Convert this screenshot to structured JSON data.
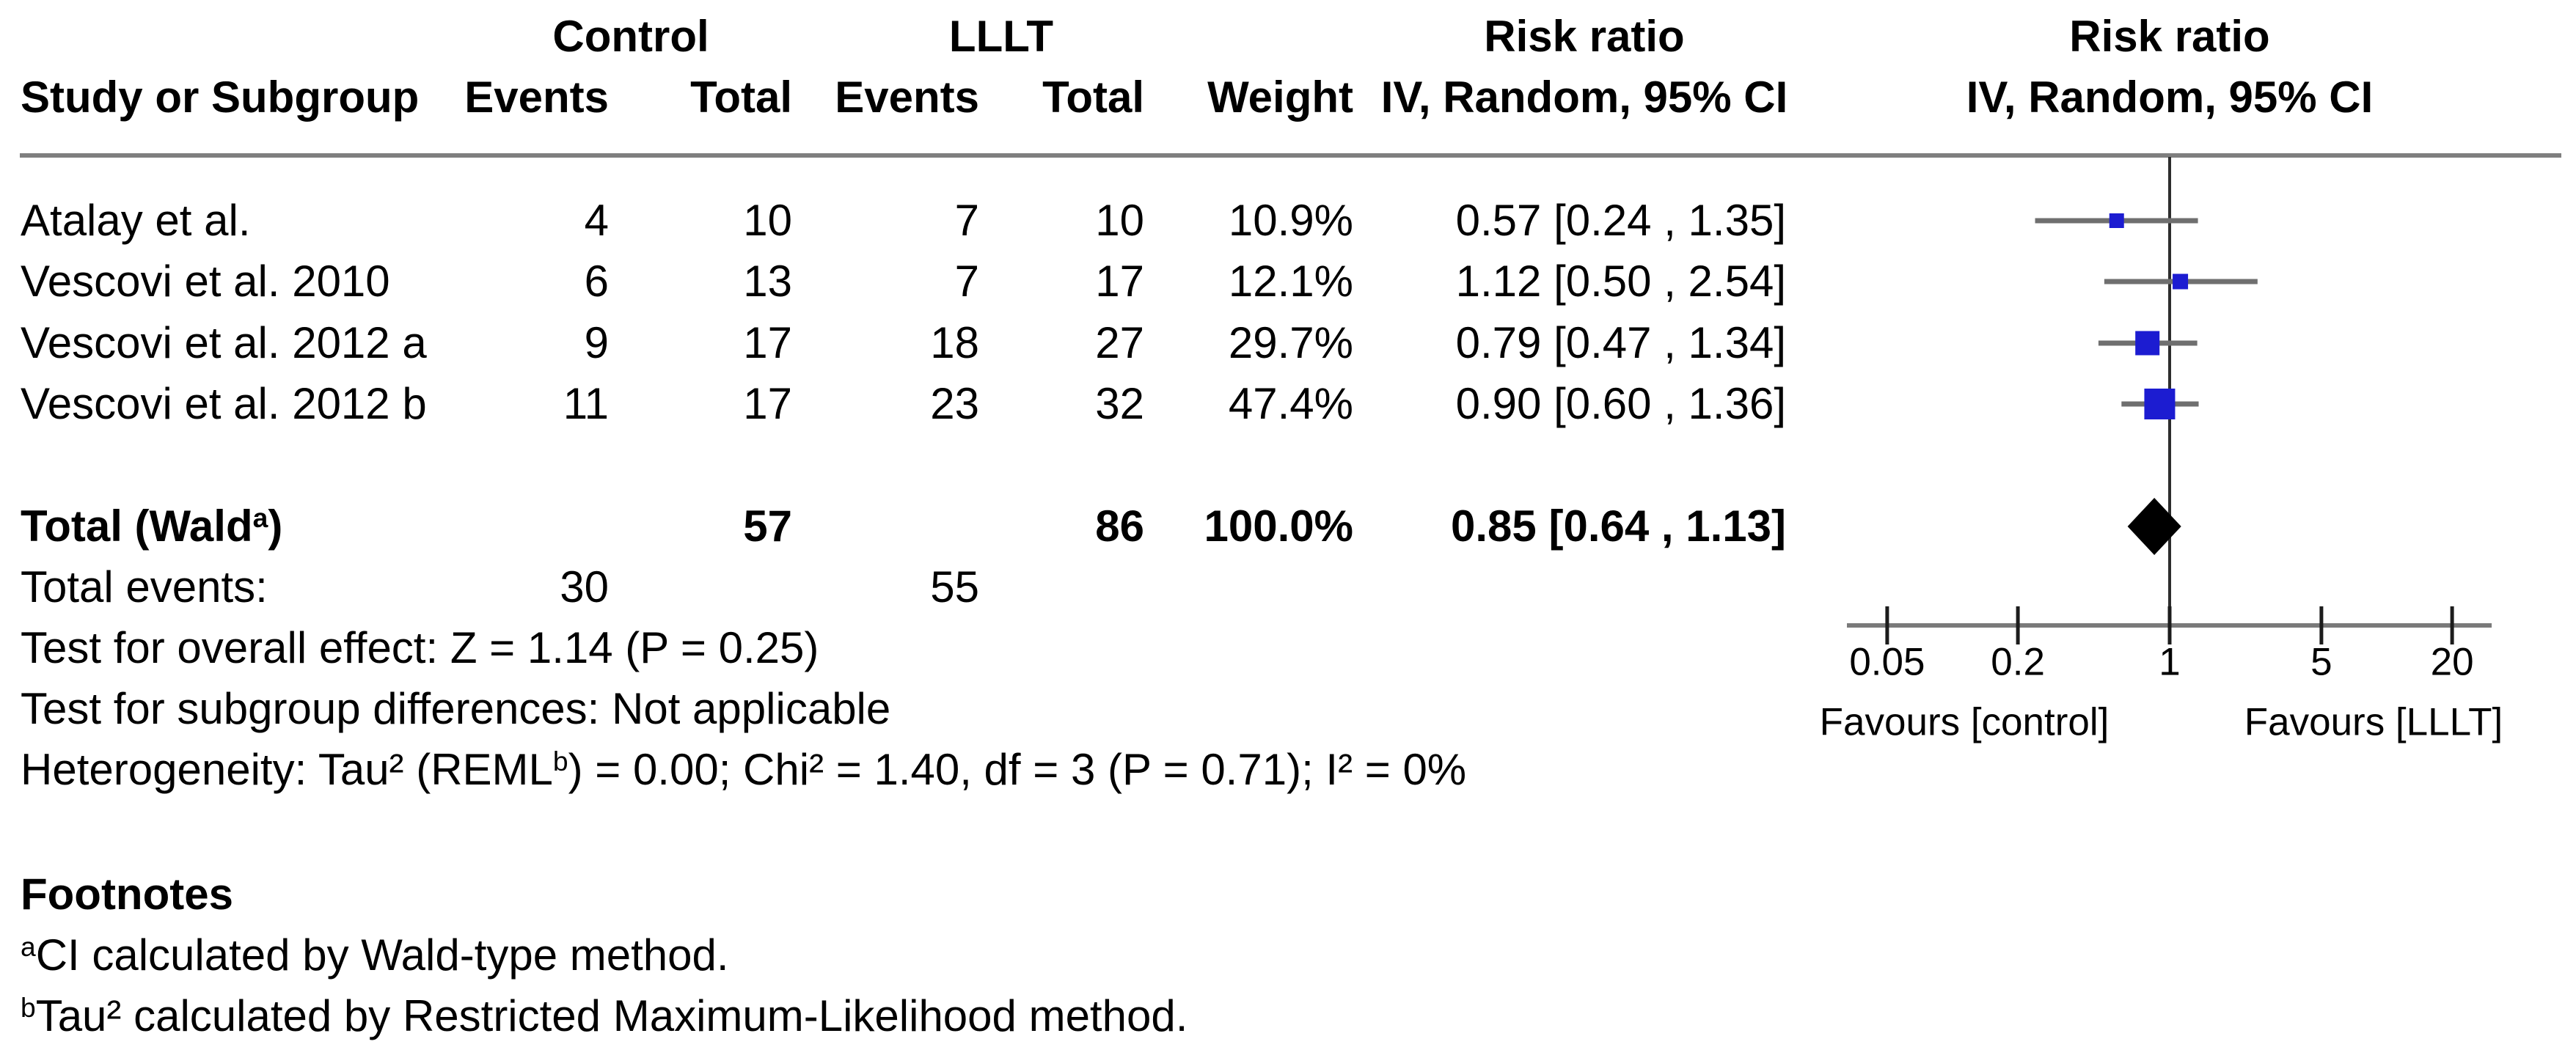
{
  "colors": {
    "square_blue": "#1c1cd1",
    "diamond_black": "#000000",
    "ci_line_gray": "#6f6f6f",
    "axis_gray": "#7a7a7a",
    "separator_gray": "#7f7f7f",
    "null_line": "#2d2d2d",
    "tick_black": "#1c1c1c",
    "text": "#000000"
  },
  "header": {
    "group1": "Control",
    "group2": "LLLT",
    "study": "Study or Subgroup",
    "events": "Events",
    "total": "Total",
    "weight": "Weight",
    "effect_col_title": "Risk ratio",
    "effect_col_subtitle": "IV, Random, 95% CI",
    "plot_col_title": "Risk ratio",
    "plot_col_subtitle": "IV, Random, 95% CI"
  },
  "chart_data": {
    "type": "scatter",
    "variant": "forest_plot",
    "x_scale": "log",
    "xlim": [
      0.033,
      30
    ],
    "null_line_at": 1,
    "x_ticks": [
      0.05,
      0.2,
      1,
      5,
      20
    ],
    "x_tick_labels": [
      "0.05",
      "0.2",
      "1",
      "5",
      "20"
    ],
    "axis_note_left": "Favours [control]",
    "axis_note_right": "Favours [LLLT]",
    "studies": [
      {
        "study": "Atalay et al.",
        "control_events": 4,
        "control_total": 10,
        "lllt_events": 7,
        "lllt_total": 10,
        "weight": "10.9%",
        "weight_pct": 10.9,
        "rr": 0.57,
        "ci_low": 0.24,
        "ci_high": 1.35,
        "estimate_text": "0.57 [0.24 , 1.35]"
      },
      {
        "study": "Vescovi et al. 2010",
        "control_events": 6,
        "control_total": 13,
        "lllt_events": 7,
        "lllt_total": 17,
        "weight": "12.1%",
        "weight_pct": 12.1,
        "rr": 1.12,
        "ci_low": 0.5,
        "ci_high": 2.54,
        "estimate_text": "1.12 [0.50 , 2.54]"
      },
      {
        "study": "Vescovi et al. 2012 a",
        "control_events": 9,
        "control_total": 17,
        "lllt_events": 18,
        "lllt_total": 27,
        "weight": "29.7%",
        "weight_pct": 29.7,
        "rr": 0.79,
        "ci_low": 0.47,
        "ci_high": 1.34,
        "estimate_text": "0.79 [0.47 , 1.34]"
      },
      {
        "study": "Vescovi et al. 2012 b",
        "control_events": 11,
        "control_total": 17,
        "lllt_events": 23,
        "lllt_total": 32,
        "weight": "47.4%",
        "weight_pct": 47.4,
        "rr": 0.9,
        "ci_low": 0.6,
        "ci_high": 1.36,
        "estimate_text": "0.90 [0.60 , 1.36]"
      }
    ],
    "total": {
      "label_pre": "Total (Wald",
      "label_sup": "a",
      "label_post": ")",
      "control_total": 57,
      "lllt_total": 86,
      "weight": "100.0%",
      "rr": 0.85,
      "ci_low": 0.64,
      "ci_high": 1.13,
      "estimate_text": "0.85 [0.64 , 1.13]"
    }
  },
  "total_events": {
    "label": "Total events:",
    "control": 30,
    "lllt": 55
  },
  "stats": {
    "overall": "Test for overall effect: Z = 1.14 (P = 0.25)",
    "subgroup": "Test for subgroup differences: Not applicable",
    "het_pre": "Heterogeneity: Tau² (REML",
    "het_sup": "b",
    "het_post": ") = 0.00; Chi² = 1.40, df = 3 (P = 0.71); I² = 0%",
    "z": 1.14,
    "p_overall": 0.25,
    "tau2": 0.0,
    "chi2": 1.4,
    "df": 3,
    "p_het": 0.71,
    "i2": "0%"
  },
  "footnotes": {
    "title": "Footnotes",
    "items": [
      {
        "sup": "a",
        "text": "CI calculated by Wald-type method."
      },
      {
        "sup": "b",
        "text": "Tau² calculated by Restricted Maximum-Likelihood method."
      }
    ]
  }
}
